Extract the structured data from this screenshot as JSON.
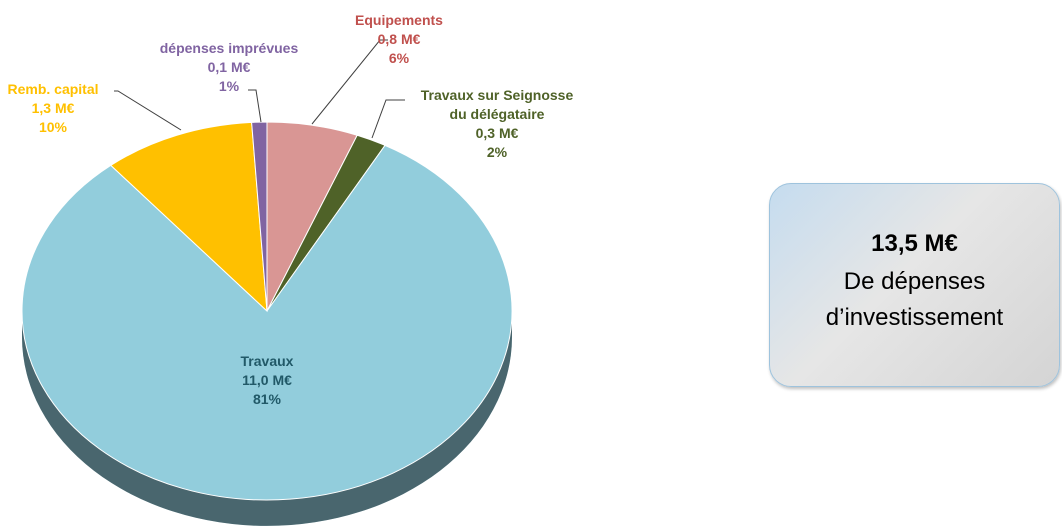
{
  "chart_data": {
    "type": "pie",
    "categories": [
      "Equipements",
      "Travaux sur Seignosse\ndu délégataire",
      "Travaux",
      "Remb. capital",
      "dépenses imprévues"
    ],
    "values": [
      6,
      2,
      81,
      10,
      1
    ],
    "value_labels": [
      "6%",
      "2%",
      "81%",
      "10%",
      "1%"
    ],
    "amounts": [
      0.8,
      0.3,
      11.0,
      1.3,
      0.1
    ],
    "amount_labels": [
      "0,8 M€",
      "0,3 M€",
      "11,0 M€",
      "1,3 M€",
      "0,1 M€"
    ],
    "colors": [
      "#d99694",
      "#4f6228",
      "#92cddc",
      "#ffc000",
      "#8064a2"
    ],
    "label_colors": [
      "#c0504d",
      "#4f6228",
      "#215968",
      "#ffc000",
      "#8064a2"
    ]
  },
  "annotation": {
    "value": "13,5 M€",
    "text": "De dépenses d’investissement"
  }
}
